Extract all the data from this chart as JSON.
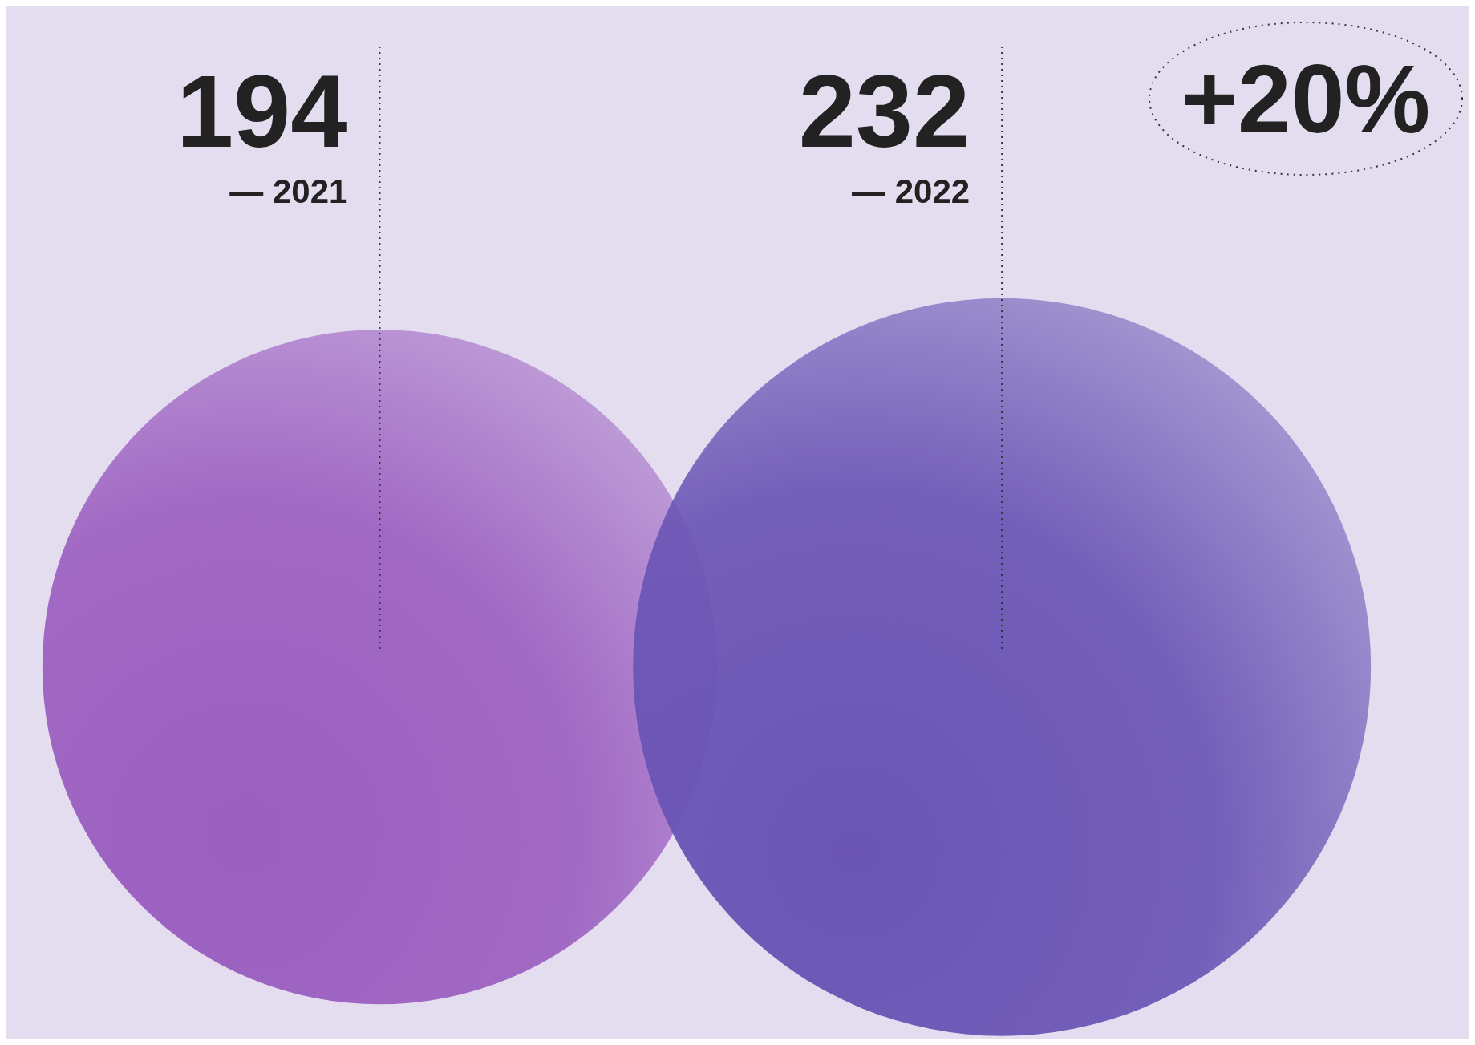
{
  "chart_data": {
    "type": "other",
    "categories": [
      "— 2021",
      "— 2022"
    ],
    "values": [
      194,
      232
    ],
    "colors": [
      "#9b5fc0",
      "#6a55b5"
    ],
    "data_labels": true,
    "annotations": [
      "+20%"
    ]
  }
}
